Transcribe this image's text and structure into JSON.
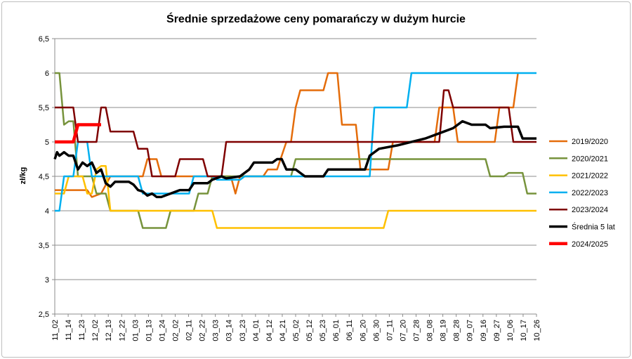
{
  "chart_data": {
    "type": "line",
    "title": "Średnie sprzedażowe ceny pomarańczy w dużym hurcie",
    "xlabel": "",
    "ylabel": "zł/kg",
    "ylim": [
      2.5,
      6.5
    ],
    "yticks": [
      "2,5",
      "3",
      "3,5",
      "4",
      "4,5",
      "5",
      "5,5",
      "6",
      "6,5"
    ],
    "categories": [
      "11_02",
      "11_14",
      "11_23",
      "12_02",
      "12_13",
      "12_22",
      "01_03",
      "01_13",
      "01_24",
      "02_02",
      "02_11",
      "02_22",
      "03_03",
      "03_14",
      "03_23",
      "04_01",
      "04_12",
      "04_21",
      "05_02",
      "05_12",
      "05_23",
      "06_01",
      "06_11",
      "06_20",
      "06_30",
      "07_11",
      "07_20",
      "07_28",
      "08_08",
      "08_19",
      "08_28",
      "09_07",
      "09_16",
      "09_27",
      "10_06",
      "10_17",
      "10_26"
    ],
    "grid": true,
    "legend_position": "right",
    "series": [
      {
        "name": "2019/2020",
        "color": "#E46C0A",
        "width": 2.5,
        "points": [
          [
            0,
            4.3
          ],
          [
            5,
            4.3
          ],
          [
            7,
            4.3
          ],
          [
            8,
            4.2
          ],
          [
            10,
            4.25
          ],
          [
            12,
            4.5
          ],
          [
            14,
            4.5
          ],
          [
            16,
            4.5
          ],
          [
            19,
            4.5
          ],
          [
            20,
            4.75
          ],
          [
            22,
            4.75
          ],
          [
            23,
            4.5
          ],
          [
            26,
            4.5
          ],
          [
            36,
            4.5
          ],
          [
            38,
            4.5
          ],
          [
            39,
            4.25
          ],
          [
            40,
            4.5
          ],
          [
            45,
            4.5
          ],
          [
            46,
            4.6
          ],
          [
            48,
            4.6
          ],
          [
            50,
            5.0
          ],
          [
            51,
            5.0
          ],
          [
            52,
            5.5
          ],
          [
            53,
            5.75
          ],
          [
            58,
            5.75
          ],
          [
            59,
            6.0
          ],
          [
            61,
            6.0
          ],
          [
            62,
            5.25
          ],
          [
            65,
            5.25
          ],
          [
            66,
            4.6
          ],
          [
            72,
            4.6
          ],
          [
            73,
            5.0
          ],
          [
            82,
            5.0
          ],
          [
            83,
            5.5
          ],
          [
            86,
            5.5
          ],
          [
            87,
            5.0
          ],
          [
            95,
            5.0
          ],
          [
            96,
            5.5
          ],
          [
            99,
            5.5
          ],
          [
            100,
            6.0
          ]
        ]
      },
      {
        "name": "2020/2021",
        "color": "#77933C",
        "width": 2.5,
        "points": [
          [
            0,
            6.0
          ],
          [
            1,
            6.0
          ],
          [
            2,
            5.25
          ],
          [
            3,
            5.3
          ],
          [
            4,
            5.3
          ],
          [
            5,
            4.5
          ],
          [
            8,
            4.5
          ],
          [
            9,
            4.25
          ],
          [
            11,
            4.25
          ],
          [
            12,
            4.0
          ],
          [
            14,
            4.0
          ],
          [
            18,
            4.0
          ],
          [
            19,
            3.75
          ],
          [
            24,
            3.75
          ],
          [
            25,
            4.0
          ],
          [
            30,
            4.0
          ],
          [
            31,
            4.25
          ],
          [
            33,
            4.25
          ],
          [
            34,
            4.5
          ],
          [
            51,
            4.5
          ],
          [
            52,
            4.75
          ],
          [
            93,
            4.75
          ],
          [
            94,
            4.5
          ],
          [
            97,
            4.5
          ],
          [
            98,
            4.55
          ],
          [
            101,
            4.55
          ],
          [
            102,
            4.25
          ],
          [
            104,
            4.25
          ]
        ]
      },
      {
        "name": "2021/2022",
        "color": "#FFC000",
        "width": 2.5,
        "points": [
          [
            0,
            4.25
          ],
          [
            2,
            4.25
          ],
          [
            3,
            4.5
          ],
          [
            6,
            4.5
          ],
          [
            7,
            4.25
          ],
          [
            8,
            4.25
          ],
          [
            9,
            4.6
          ],
          [
            10,
            4.65
          ],
          [
            11,
            4.65
          ],
          [
            12,
            4.0
          ],
          [
            34,
            4.0
          ],
          [
            35,
            3.75
          ],
          [
            71,
            3.75
          ],
          [
            72,
            4.0
          ],
          [
            104,
            4.0
          ]
        ]
      },
      {
        "name": "2022/2023",
        "color": "#00B0F0",
        "width": 2.5,
        "points": [
          [
            0,
            4.0
          ],
          [
            1,
            4.0
          ],
          [
            2,
            4.5
          ],
          [
            4,
            4.5
          ],
          [
            5,
            5.0
          ],
          [
            7,
            5.0
          ],
          [
            8,
            4.5
          ],
          [
            18,
            4.5
          ],
          [
            19,
            4.25
          ],
          [
            29,
            4.25
          ],
          [
            30,
            4.5
          ],
          [
            34,
            4.5
          ],
          [
            35,
            4.45
          ],
          [
            40,
            4.45
          ],
          [
            41,
            4.5
          ],
          [
            68,
            4.5
          ],
          [
            69,
            5.5
          ],
          [
            76,
            5.5
          ],
          [
            77,
            6.0
          ],
          [
            104,
            6.0
          ]
        ]
      },
      {
        "name": "2023/2024",
        "color": "#7F0000",
        "width": 2.5,
        "points": [
          [
            0,
            5.5
          ],
          [
            4,
            5.5
          ],
          [
            5,
            5.0
          ],
          [
            9,
            5.0
          ],
          [
            10,
            5.5
          ],
          [
            11,
            5.5
          ],
          [
            12,
            5.15
          ],
          [
            17,
            5.15
          ],
          [
            18,
            4.9
          ],
          [
            20,
            4.9
          ],
          [
            21,
            4.5
          ],
          [
            26,
            4.5
          ],
          [
            27,
            4.75
          ],
          [
            32,
            4.75
          ],
          [
            33,
            4.5
          ],
          [
            36,
            4.5
          ],
          [
            37,
            5.0
          ],
          [
            83,
            5.0
          ],
          [
            84,
            5.75
          ],
          [
            85,
            5.75
          ],
          [
            86,
            5.5
          ],
          [
            98,
            5.5
          ],
          [
            99,
            5.0
          ],
          [
            104,
            5.0
          ]
        ]
      },
      {
        "name": "Średnia 5 lat",
        "color": "#000000",
        "width": 3.5,
        "points": [
          [
            0,
            4.75
          ],
          [
            0.5,
            4.85
          ],
          [
            1,
            4.8
          ],
          [
            2,
            4.85
          ],
          [
            3,
            4.8
          ],
          [
            4,
            4.8
          ],
          [
            5,
            4.6
          ],
          [
            6,
            4.7
          ],
          [
            7,
            4.65
          ],
          [
            8,
            4.7
          ],
          [
            9,
            4.55
          ],
          [
            10,
            4.6
          ],
          [
            11,
            4.4
          ],
          [
            12,
            4.35
          ],
          [
            13,
            4.42
          ],
          [
            16,
            4.42
          ],
          [
            17,
            4.38
          ],
          [
            18,
            4.3
          ],
          [
            19,
            4.28
          ],
          [
            20,
            4.22
          ],
          [
            21,
            4.25
          ],
          [
            22,
            4.2
          ],
          [
            23,
            4.2
          ],
          [
            25,
            4.25
          ],
          [
            27,
            4.3
          ],
          [
            29,
            4.3
          ],
          [
            30,
            4.4
          ],
          [
            33,
            4.4
          ],
          [
            34,
            4.45
          ],
          [
            36,
            4.5
          ],
          [
            37,
            4.47
          ],
          [
            40,
            4.5
          ],
          [
            42,
            4.6
          ],
          [
            43,
            4.7
          ],
          [
            47,
            4.7
          ],
          [
            48,
            4.75
          ],
          [
            49,
            4.75
          ],
          [
            50,
            4.6
          ],
          [
            52,
            4.6
          ],
          [
            53,
            4.55
          ],
          [
            54,
            4.5
          ],
          [
            58,
            4.5
          ],
          [
            59,
            4.6
          ],
          [
            67,
            4.6
          ],
          [
            68,
            4.8
          ],
          [
            70,
            4.9
          ],
          [
            74,
            4.95
          ],
          [
            80,
            5.05
          ],
          [
            84,
            5.15
          ],
          [
            86,
            5.2
          ],
          [
            88,
            5.3
          ],
          [
            90,
            5.25
          ],
          [
            93,
            5.25
          ],
          [
            94,
            5.2
          ],
          [
            97,
            5.22
          ],
          [
            100,
            5.22
          ],
          [
            101,
            5.05
          ],
          [
            104,
            5.05
          ]
        ]
      },
      {
        "name": "2024/2025",
        "color": "#FF0000",
        "width": 4.5,
        "points": [
          [
            0,
            5.0
          ],
          [
            4,
            5.0
          ],
          [
            5,
            5.25
          ],
          [
            10,
            5.25
          ]
        ]
      }
    ]
  }
}
